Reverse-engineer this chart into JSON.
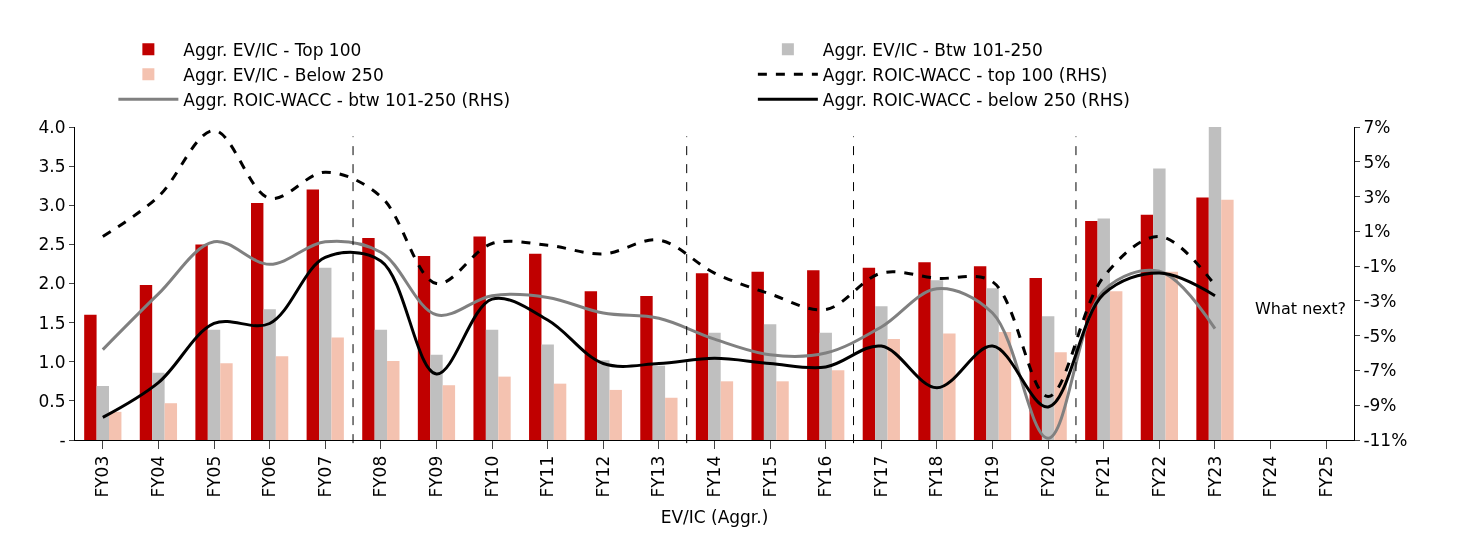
{
  "chart_data": {
    "type": "bar",
    "xlabel": "EV/IC (Aggr.)",
    "categories": [
      "FY03",
      "FY04",
      "FY05",
      "FY06",
      "FY07",
      "FY08",
      "FY09",
      "FY10",
      "FY11",
      "FY12",
      "FY13",
      "FY14",
      "FY15",
      "FY16",
      "FY17",
      "FY18",
      "FY19",
      "FY20",
      "FY21",
      "FY22",
      "FY23",
      "FY24",
      "FY25"
    ],
    "series": [
      {
        "name": "Aggr. EV/IC - Top 100",
        "color": "#c00000",
        "values": [
          1.6,
          1.98,
          2.5,
          3.03,
          3.2,
          2.58,
          2.35,
          2.6,
          2.38,
          1.9,
          1.84,
          2.13,
          2.15,
          2.17,
          2.2,
          2.27,
          2.22,
          2.07,
          2.8,
          2.88,
          3.1,
          null,
          null
        ]
      },
      {
        "name": "Aggr. EV/IC - Btw 101-250",
        "color": "#bfbfbf",
        "values": [
          0.69,
          0.86,
          1.41,
          1.67,
          2.2,
          1.41,
          1.09,
          1.41,
          1.22,
          1.02,
          0.95,
          1.37,
          1.48,
          1.37,
          1.71,
          2.04,
          1.94,
          1.58,
          2.83,
          3.47,
          4.0,
          null,
          null
        ]
      },
      {
        "name": "Aggr. EV/IC - Below 250",
        "color": "#f4c2b0",
        "values": [
          0.36,
          0.47,
          0.98,
          1.07,
          1.31,
          1.01,
          0.7,
          0.81,
          0.72,
          0.64,
          0.54,
          0.75,
          0.75,
          0.89,
          1.29,
          1.36,
          1.38,
          1.12,
          1.9,
          2.15,
          3.07,
          null,
          null
        ]
      },
      {
        "name": "Aggr. ROIC-WACC - top 100 (RHS)",
        "type": "line",
        "axis": "y2",
        "color": "#000000",
        "line_style": "dashed",
        "values": [
          0.7,
          3.0,
          6.8,
          2.9,
          4.4,
          3.0,
          -2.0,
          0.3,
          0.2,
          -0.3,
          0.5,
          -1.4,
          -2.6,
          -3.5,
          -1.4,
          -1.7,
          -1.9,
          -8.5,
          -1.6,
          0.7,
          -2.1,
          null,
          null
        ]
      },
      {
        "name": "Aggr. ROIC-WACC - btw 101-250 (RHS)",
        "type": "line",
        "axis": "y2",
        "color": "#808080",
        "line_style": "solid",
        "values": [
          -5.8,
          -2.6,
          0.4,
          -0.9,
          0.4,
          -0.2,
          -3.8,
          -2.7,
          -2.8,
          -3.7,
          -4.0,
          -5.2,
          -6.1,
          -6.0,
          -4.5,
          -2.3,
          -3.7,
          -10.9,
          -2.4,
          -1.3,
          -4.6,
          null,
          null
        ]
      },
      {
        "name": "Aggr. ROIC-WACC - below 250 (RHS)",
        "type": "line",
        "axis": "y2",
        "color": "#000000",
        "line_style": "solid",
        "values": [
          -9.7,
          -7.7,
          -4.3,
          -4.3,
          -0.5,
          -0.7,
          -7.2,
          -2.9,
          -4.1,
          -6.6,
          -6.6,
          -6.3,
          -6.6,
          -6.8,
          -5.6,
          -8.0,
          -5.6,
          -9.1,
          -2.6,
          -1.4,
          -2.7,
          null,
          null
        ]
      }
    ],
    "ylim": [
      0,
      4.0
    ],
    "yticks": [
      {
        "value": 0,
        "label": "-"
      },
      {
        "value": 0.5,
        "label": "0.5"
      },
      {
        "value": 1,
        "label": "1.0"
      },
      {
        "value": 1.5,
        "label": "1.5"
      },
      {
        "value": 2,
        "label": "2.0"
      },
      {
        "value": 2.5,
        "label": "2.5"
      },
      {
        "value": 3,
        "label": "3.0"
      },
      {
        "value": 3.5,
        "label": "3.5"
      },
      {
        "value": 4,
        "label": "4.0"
      }
    ],
    "y2lim": [
      -11,
      7
    ],
    "y2ticks": [
      {
        "value": -11,
        "label": "-11%"
      },
      {
        "value": -9,
        "label": "-9%"
      },
      {
        "value": -7,
        "label": "-7%"
      },
      {
        "value": -5,
        "label": "-5%"
      },
      {
        "value": -3,
        "label": "-3%"
      },
      {
        "value": -1,
        "label": "-1%"
      },
      {
        "value": 1,
        "label": "1%"
      },
      {
        "value": 3,
        "label": "3%"
      },
      {
        "value": 5,
        "label": "5%"
      },
      {
        "value": 7,
        "label": "7%"
      }
    ],
    "annotations": [
      "What next?"
    ],
    "grid": false,
    "legend": "top"
  }
}
